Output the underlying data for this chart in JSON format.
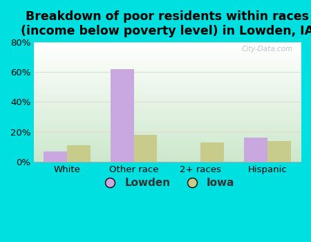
{
  "title": "Breakdown of poor residents within races\n(income below poverty level) in Lowden, IA",
  "categories": [
    "White",
    "Other race",
    "2+ races",
    "Hispanic"
  ],
  "lowden_values": [
    7,
    62,
    0,
    16
  ],
  "iowa_values": [
    11,
    18,
    13,
    14
  ],
  "lowden_color": "#c9a8e0",
  "iowa_color": "#c8cc8a",
  "background_outer": "#00e0e0",
  "ylim": [
    0,
    80
  ],
  "yticks": [
    0,
    20,
    40,
    60,
    80
  ],
  "ytick_labels": [
    "0%",
    "20%",
    "40%",
    "60%",
    "80%"
  ],
  "bar_width": 0.35,
  "legend_lowden": "Lowden",
  "legend_iowa": "Iowa",
  "title_fontsize": 12.5,
  "watermark": "City-Data.com",
  "grid_color": "#ddddcc",
  "bg_top": "#ffffff",
  "bg_bottom": "#cce8cc"
}
